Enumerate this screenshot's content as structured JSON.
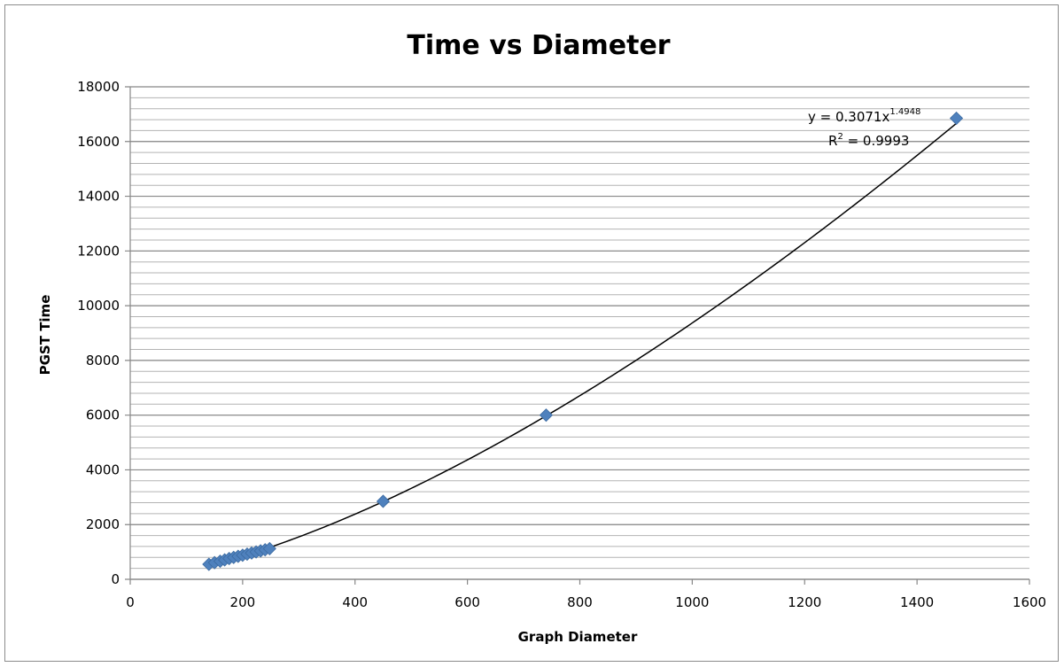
{
  "chart_data": {
    "type": "scatter",
    "title": "Time vs Diameter",
    "xlabel": "Graph Diameter",
    "ylabel": "PGST Time",
    "xlim": [
      0,
      1600
    ],
    "ylim": [
      0,
      18000
    ],
    "x_ticks": [
      0,
      200,
      400,
      600,
      800,
      1000,
      1200,
      1400,
      1600
    ],
    "x_tick_labels": [
      "0",
      "200",
      "400",
      "600",
      "800",
      "1000",
      "1200",
      "1400",
      "1600"
    ],
    "y_ticks": [
      0,
      2000,
      4000,
      6000,
      8000,
      10000,
      12000,
      14000,
      16000,
      18000
    ],
    "y_tick_labels": [
      "0",
      "2000",
      "4000",
      "6000",
      "8000",
      "10000",
      "12000",
      "14000",
      "16000",
      "18000"
    ],
    "grid": true,
    "minor_grid": true,
    "series": [
      {
        "marker": "diamond",
        "color": "#4F81BD",
        "x": [
          140,
          150,
          160,
          168,
          176,
          184,
          192,
          200,
          208,
          216,
          224,
          232,
          240,
          248,
          450,
          740,
          1470
        ],
        "y": [
          550,
          610,
          660,
          710,
          760,
          800,
          840,
          880,
          920,
          960,
          1000,
          1040,
          1080,
          1120,
          2850,
          6000,
          16850
        ]
      }
    ],
    "trendline": {
      "type": "power",
      "coefficient": 0.3071,
      "exponent": 1.4948,
      "color": "#000000",
      "x_range": [
        140,
        1470
      ]
    },
    "annotations": {
      "equation_prefix": "y = 0.3071x",
      "equation_exponent": "1.4948",
      "r_squared_prefix": "R",
      "r_squared_exponent": "2",
      "r_squared_suffix": " = 0.9993"
    }
  },
  "colors": {
    "marker": "#4F81BD",
    "grid": "#878787",
    "trendline": "#000000",
    "frame": "#8c8c8c"
  }
}
